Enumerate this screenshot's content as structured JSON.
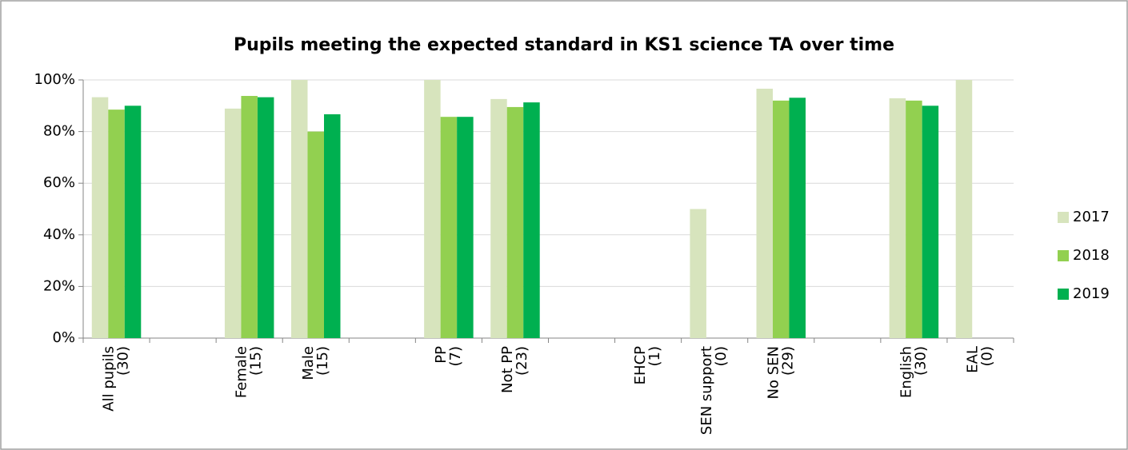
{
  "chart_data": {
    "type": "bar",
    "title": "Pupils meeting the expected standard in KS1 science TA over time",
    "categories": [
      "All pupils\n(30)",
      null,
      "Female\n(15)",
      "Male\n(15)",
      null,
      "PP\n(7)",
      "Not PP\n(23)",
      null,
      "EHCP\n(1)",
      "SEN support\n(0)",
      "No SEN\n(29)",
      null,
      "English\n(30)",
      "EAL\n(0)"
    ],
    "series": [
      {
        "name": "2017",
        "color": "#d7e4bd",
        "values": [
          93.3,
          null,
          88.9,
          100,
          null,
          100,
          92.6,
          null,
          null,
          50,
          96.6,
          null,
          92.9,
          100
        ]
      },
      {
        "name": "2018",
        "color": "#92d050",
        "values": [
          88.5,
          null,
          93.8,
          80,
          null,
          85.7,
          89.5,
          null,
          null,
          null,
          92,
          null,
          92,
          null
        ]
      },
      {
        "name": "2019",
        "color": "#00b050",
        "values": [
          90,
          null,
          93.3,
          86.7,
          null,
          85.7,
          91.3,
          null,
          null,
          null,
          93.1,
          null,
          90,
          null
        ]
      }
    ],
    "ylim": [
      0,
      100
    ],
    "yticks": [
      {
        "value": 0,
        "label": "0%"
      },
      {
        "value": 20,
        "label": "20%"
      },
      {
        "value": 40,
        "label": "40%"
      },
      {
        "value": 60,
        "label": "60%"
      },
      {
        "value": 80,
        "label": "80%"
      },
      {
        "value": 100,
        "label": "100%"
      }
    ],
    "grid": true,
    "legend": "right"
  }
}
